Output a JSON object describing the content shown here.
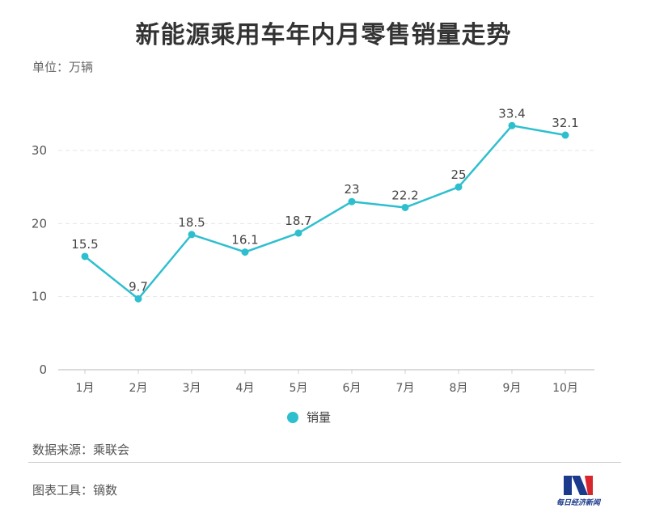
{
  "title": "新能源乘用车年内月零售销量走势",
  "unit_label": "单位：万辆",
  "source_label": "数据来源：乘联会",
  "tool_label": "图表工具：镝数",
  "logo_text": "每日经济新闻",
  "colors": {
    "line": "#2ebfcf",
    "grid": "#e6e6e6",
    "axis": "#cfcfcf",
    "text": "#555555"
  },
  "chart_data": {
    "type": "line",
    "categories": [
      "1月",
      "2月",
      "3月",
      "4月",
      "5月",
      "6月",
      "7月",
      "8月",
      "9月",
      "10月"
    ],
    "series": [
      {
        "name": "销量",
        "values": [
          15.5,
          9.7,
          18.5,
          16.1,
          18.7,
          23,
          22.2,
          25,
          33.4,
          32.1
        ]
      }
    ],
    "data_labels": [
      "15.5",
      "9.7",
      "18.5",
      "16.1",
      "18.7",
      "23",
      "22.2",
      "25",
      "33.4",
      "32.1"
    ],
    "yticks": [
      0,
      10,
      20,
      30
    ],
    "ylim": [
      0,
      30
    ],
    "grid": true,
    "legend_position": "bottom-center"
  }
}
